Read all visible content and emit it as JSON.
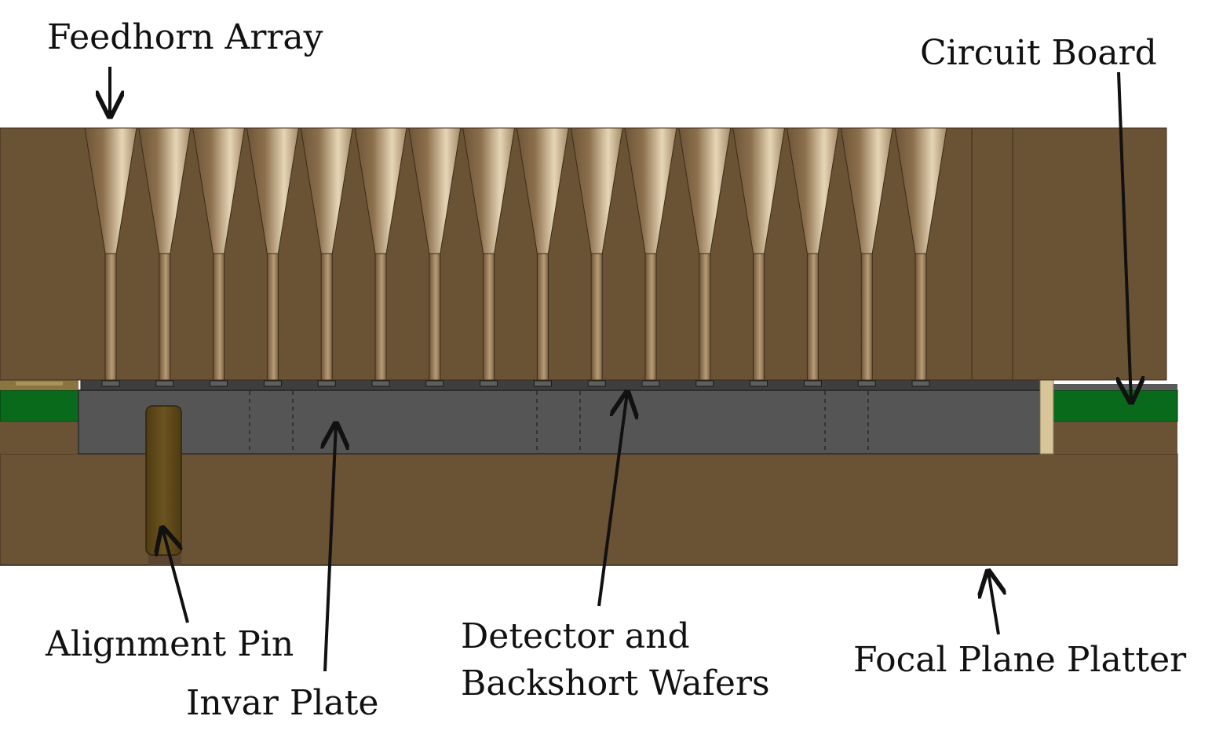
{
  "labels": {
    "feedhorn_array": "Feedhorn Array",
    "circuit_board": "Circuit Board",
    "alignment_pin": "Alignment Pin",
    "invar_plate": "Invar Plate",
    "detector_line1": "Detector and",
    "detector_line2": "Backshort Wafers",
    "focal_plane_platter": "Focal Plane Platter"
  },
  "feedhorn_count": 16,
  "colors": {
    "feedhorn_body": "#6a5234",
    "platter": "#6a5234",
    "invar_plate": "#555555",
    "circuit_board": "#0a6a1c",
    "alignment_pin": "#5e4716",
    "spacer": "#d8c59a",
    "arrow": "#111111"
  }
}
